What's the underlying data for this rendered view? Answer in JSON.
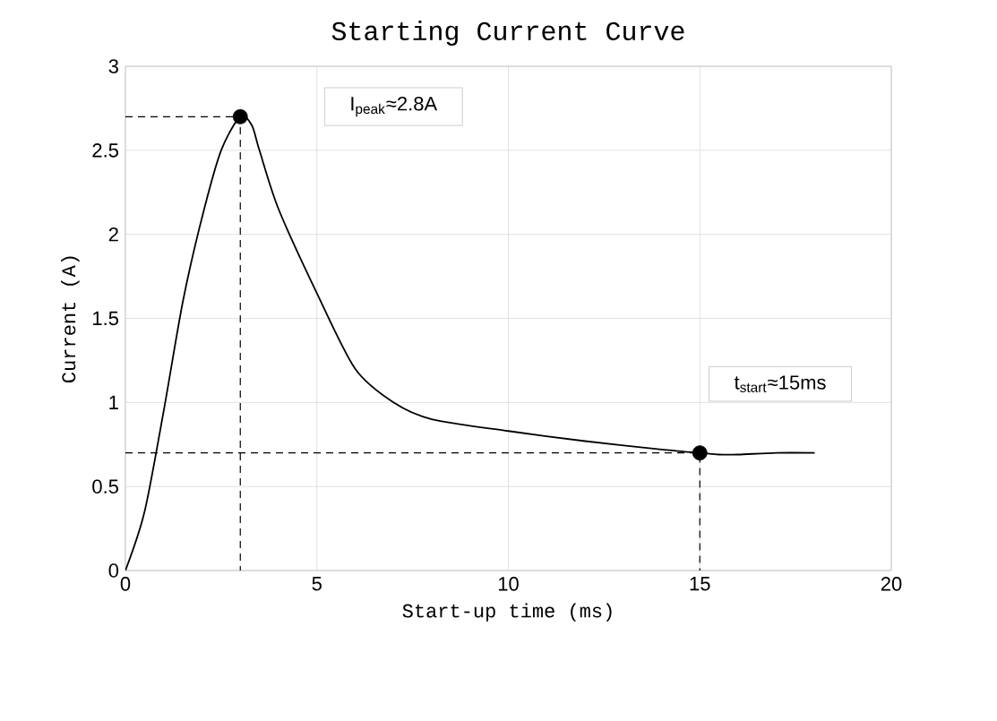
{
  "chart_data": {
    "type": "line",
    "title": "Starting Current Curve",
    "xlabel": "Start-up time (ms)",
    "ylabel": "Current (A)",
    "xlim": [
      0,
      20
    ],
    "ylim": [
      0,
      3
    ],
    "xticks": [
      0,
      5,
      10,
      15,
      20
    ],
    "yticks": [
      0,
      0.5,
      1,
      1.5,
      2,
      2.5,
      3
    ],
    "grid": true,
    "annotations": [
      "I$_{peak}$≈2.8A",
      "t$_{start}$≈15ms"
    ],
    "series": [
      {
        "color": "#000000",
        "line_style": "solid",
        "marker": "none",
        "x": [
          0,
          0.5,
          1,
          1.5,
          2,
          2.5,
          3,
          3.3,
          3.5,
          4,
          5,
          6,
          7,
          8,
          10,
          12,
          14,
          15,
          15.5,
          16,
          17,
          18
        ],
        "values": [
          0,
          0.35,
          0.95,
          1.6,
          2.1,
          2.5,
          2.7,
          2.65,
          2.5,
          2.15,
          1.65,
          1.2,
          1.0,
          0.9,
          0.83,
          0.77,
          0.72,
          0.7,
          0.69,
          0.69,
          0.7,
          0.7
        ]
      },
      {
        "color": "#000000",
        "line_style": "dashed",
        "marker": "none",
        "x": [
          0,
          3,
          3
        ],
        "values": [
          2.7,
          2.7,
          0
        ]
      },
      {
        "color": "#000000",
        "line_style": "dashed",
        "marker": "none",
        "x": [
          0,
          15,
          15
        ],
        "values": [
          0.7,
          0.7,
          0
        ]
      },
      {
        "type": "scatter",
        "color": "#000000",
        "marker": "circle",
        "x": [
          3,
          15
        ],
        "values": [
          2.7,
          0.7
        ]
      }
    ]
  }
}
